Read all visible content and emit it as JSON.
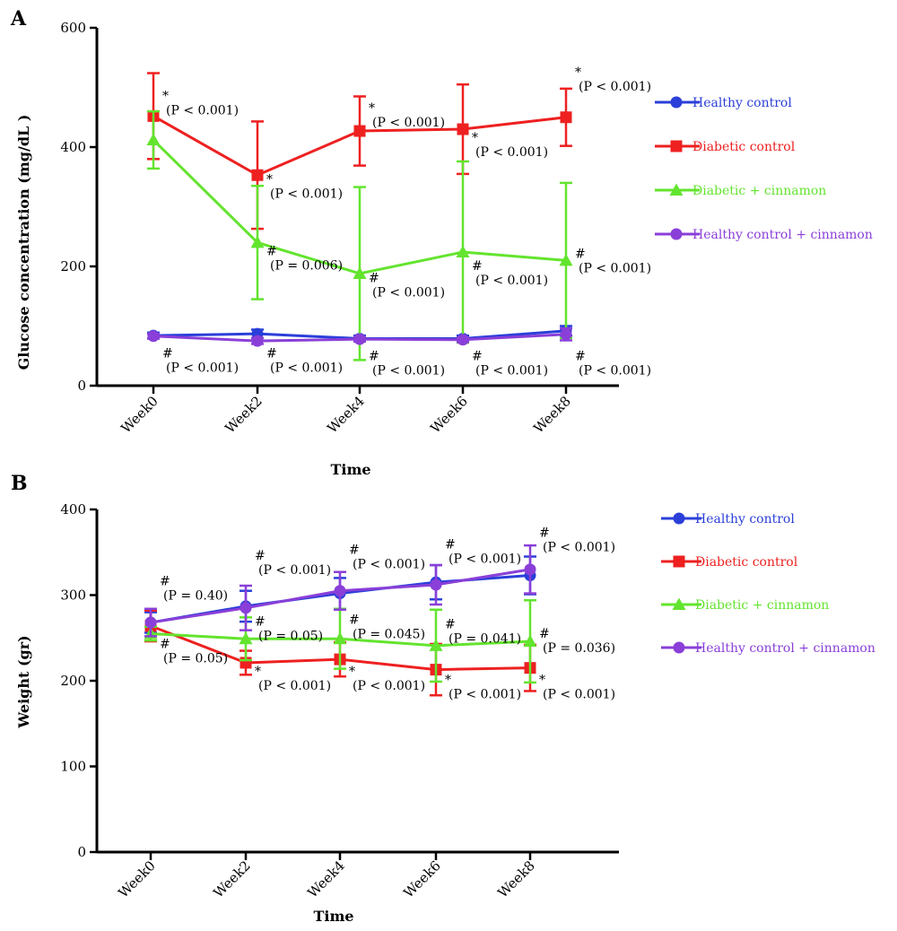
{
  "chart_data": [
    {
      "type": "line",
      "panel": "A",
      "xlabel": "Time",
      "ylabel": "Glucose concentration (mg/dL )",
      "categories": [
        "Week0",
        "Week2",
        "Week4",
        "Week6",
        "Week8"
      ],
      "ylim": [
        0,
        600
      ],
      "yticks": [
        0,
        200,
        400,
        600
      ],
      "legend": "right",
      "series": [
        {
          "name": "Healthy control",
          "color": "#2b3fd9",
          "marker": "circle",
          "values": [
            84,
            87,
            79,
            79,
            92
          ],
          "errors": [
            5,
            7,
            5,
            5,
            8
          ]
        },
        {
          "name": "Diabetic control",
          "color": "#ee2020",
          "marker": "square",
          "values": [
            452,
            353,
            427,
            430,
            450
          ],
          "errors": [
            72,
            90,
            58,
            75,
            48
          ]
        },
        {
          "name": "Diabetic + cinnamon",
          "color": "#63e42e",
          "marker": "triangle",
          "values": [
            412,
            240,
            188,
            224,
            210
          ],
          "errors": [
            48,
            95,
            145,
            152,
            130
          ]
        },
        {
          "name": "Healthy control + cinnamon",
          "color": "#8a3fd8",
          "marker": "circle",
          "values": [
            83,
            75,
            78,
            77,
            86
          ],
          "errors": [
            4,
            5,
            4,
            4,
            10
          ]
        }
      ],
      "annotations": [
        {
          "sym": "*",
          "text": "(P < 0.001)",
          "cat": 0,
          "y": 470
        },
        {
          "sym": "*",
          "text": "(P < 0.001)",
          "cat": 1,
          "y": 330
        },
        {
          "sym": "*",
          "text": "(P < 0.001)",
          "cat": 2,
          "y": 450
        },
        {
          "sym": "*",
          "text": "(P < 0.001)",
          "cat": 3,
          "y": 400
        },
        {
          "sym": "*",
          "text": "(P < 0.001)",
          "cat": 4,
          "y": 510
        },
        {
          "sym": "#",
          "text": "(P = 0.006)",
          "cat": 1,
          "y": 210
        },
        {
          "sym": "#",
          "text": "(P < 0.001)",
          "cat": 2,
          "y": 165
        },
        {
          "sym": "#",
          "text": "(P < 0.001)",
          "cat": 3,
          "y": 185
        },
        {
          "sym": "#",
          "text": "(P < 0.001)",
          "cat": 4,
          "y": 205
        },
        {
          "sym": "#",
          "text": "(P < 0.001)",
          "cat": 0,
          "y": 38
        },
        {
          "sym": "#",
          "text": "(P < 0.001)",
          "cat": 1,
          "y": 38
        },
        {
          "sym": "#",
          "text": "(P < 0.001)",
          "cat": 2,
          "y": 34
        },
        {
          "sym": "#",
          "text": "(P < 0.001)",
          "cat": 3,
          "y": 34
        },
        {
          "sym": "#",
          "text": "(P < 0.001)",
          "cat": 4,
          "y": 34
        }
      ]
    },
    {
      "type": "line",
      "panel": "B",
      "xlabel": "Time",
      "ylabel": "Weight (gr)",
      "categories": [
        "Week0",
        "Week2",
        "Week4",
        "Week6",
        "Week8"
      ],
      "ylim": [
        0,
        400
      ],
      "yticks": [
        0,
        100,
        200,
        300,
        400
      ],
      "legend": "right",
      "series": [
        {
          "name": "Healthy control",
          "color": "#2b3fd9",
          "marker": "circle",
          "values": [
            268,
            287,
            302,
            315,
            323
          ],
          "errors": [
            12,
            18,
            18,
            20,
            22
          ]
        },
        {
          "name": "Diabetic control",
          "color": "#ee2020",
          "marker": "square",
          "values": [
            264,
            221,
            225,
            213,
            215
          ],
          "errors": [
            18,
            14,
            20,
            30,
            27
          ]
        },
        {
          "name": "Diabetic + cinnamon",
          "color": "#63e42e",
          "marker": "triangle",
          "values": [
            255,
            249,
            249,
            241,
            246
          ],
          "errors": [
            8,
            25,
            35,
            42,
            48
          ]
        },
        {
          "name": "Healthy control + cinnamon",
          "color": "#8a3fd8",
          "marker": "circle",
          "values": [
            268,
            285,
            305,
            312,
            330
          ],
          "errors": [
            16,
            26,
            22,
            23,
            28
          ]
        }
      ],
      "annotations": [
        {
          "sym": "#",
          "text": "(P = 0.40)",
          "cat": 0,
          "y": 305
        },
        {
          "sym": "#",
          "text": "(P = 0.05)",
          "cat": 0,
          "y": 232
        },
        {
          "sym": "#",
          "text": "(P < 0.001)",
          "cat": 1,
          "y": 335
        },
        {
          "sym": "#",
          "text": "(P < 0.001)",
          "cat": 2,
          "y": 342
        },
        {
          "sym": "#",
          "text": "(P < 0.001)",
          "cat": 3,
          "y": 348
        },
        {
          "sym": "#",
          "text": "(P < 0.001)",
          "cat": 4,
          "y": 362
        },
        {
          "sym": "#",
          "text": "(P = 0.05)",
          "cat": 1,
          "y": 258
        },
        {
          "sym": "#",
          "text": "(P = 0.045)",
          "cat": 2,
          "y": 260
        },
        {
          "sym": "#",
          "text": "(P = 0.041)",
          "cat": 3,
          "y": 255
        },
        {
          "sym": "#",
          "text": "(P = 0.036)",
          "cat": 4,
          "y": 244
        },
        {
          "sym": "*",
          "text": "(P < 0.001)",
          "cat": 1,
          "y": 200
        },
        {
          "sym": "*",
          "text": "(P < 0.001)",
          "cat": 2,
          "y": 200
        },
        {
          "sym": "*",
          "text": "(P < 0.001)",
          "cat": 3,
          "y": 190
        },
        {
          "sym": "*",
          "text": "(P < 0.001)",
          "cat": 4,
          "y": 190
        }
      ]
    }
  ]
}
